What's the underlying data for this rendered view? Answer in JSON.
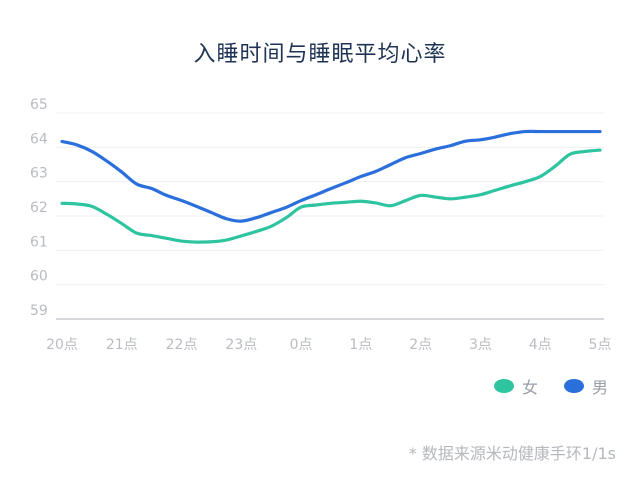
{
  "chart_data": {
    "type": "line",
    "title": "入睡时间与睡眠平均心率",
    "xlabel": "",
    "ylabel": "",
    "categories": [
      "20点",
      "21点",
      "22点",
      "23点",
      "0点",
      "1点",
      "2点",
      "3点",
      "4点",
      "5点"
    ],
    "ylim": [
      59,
      65
    ],
    "yticks": [
      "65",
      "64",
      "63",
      "62",
      "61",
      "60",
      "59"
    ],
    "grid": true,
    "legend_position": "bottom-right",
    "x": [
      0,
      0.25,
      0.5,
      0.75,
      1,
      1.25,
      1.5,
      1.75,
      2,
      2.25,
      2.5,
      2.75,
      3,
      3.25,
      3.5,
      3.75,
      4,
      4.25,
      4.5,
      4.75,
      5,
      5.25,
      5.5,
      5.75,
      6,
      6.25,
      6.5,
      6.75,
      7,
      7.25,
      7.5,
      7.75,
      8,
      8.25,
      8.5,
      8.75,
      9
    ],
    "series": [
      {
        "name": "女",
        "color": "#2ec4a0",
        "values": [
          62.37,
          62.35,
          62.28,
          62.05,
          61.78,
          61.5,
          61.43,
          61.35,
          61.27,
          61.24,
          61.25,
          61.3,
          61.42,
          61.55,
          61.7,
          61.95,
          62.26,
          62.32,
          62.37,
          62.4,
          62.43,
          62.38,
          62.3,
          62.45,
          62.6,
          62.55,
          62.5,
          62.55,
          62.62,
          62.75,
          62.88,
          63.0,
          63.15,
          63.45,
          63.8,
          63.88,
          63.92
        ]
      },
      {
        "name": "男",
        "color": "#2a6fdb",
        "values": [
          64.17,
          64.07,
          63.88,
          63.6,
          63.28,
          62.93,
          62.8,
          62.6,
          62.45,
          62.28,
          62.1,
          61.92,
          61.85,
          61.95,
          62.1,
          62.25,
          62.45,
          62.62,
          62.8,
          62.97,
          63.15,
          63.3,
          63.5,
          63.7,
          63.82,
          63.95,
          64.05,
          64.18,
          64.22,
          64.3,
          64.4,
          64.46,
          64.46,
          64.46,
          64.46,
          64.46,
          64.46
        ]
      }
    ]
  },
  "legend": [
    {
      "label": "女",
      "color": "#2ec4a0"
    },
    {
      "label": "男",
      "color": "#2a6fdb"
    }
  ],
  "footnote": "* 数据来源米动健康手环1/1s"
}
